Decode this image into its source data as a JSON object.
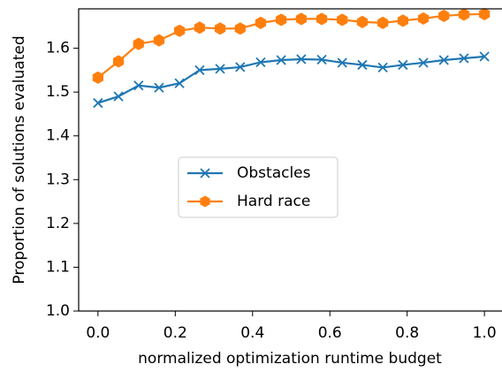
{
  "chart_data": {
    "type": "line",
    "xlabel": "normalized optimization runtime budget",
    "ylabel": "Proportion of solutions evaluated",
    "x": [
      0,
      0.053,
      0.105,
      0.158,
      0.211,
      0.263,
      0.316,
      0.368,
      0.421,
      0.474,
      0.526,
      0.579,
      0.632,
      0.684,
      0.737,
      0.789,
      0.842,
      0.895,
      0.947,
      1
    ],
    "series": [
      {
        "name": "Obstacles",
        "color": "#1f77b4",
        "marker": "x",
        "values": [
          1.475,
          1.49,
          1.515,
          1.51,
          1.52,
          1.55,
          1.553,
          1.557,
          1.568,
          1.573,
          1.575,
          1.574,
          1.567,
          1.562,
          1.556,
          1.562,
          1.567,
          1.573,
          1.577,
          1.581
        ]
      },
      {
        "name": "Hard race",
        "color": "#ff7f0e",
        "marker": "h",
        "values": [
          1.533,
          1.57,
          1.61,
          1.618,
          1.64,
          1.647,
          1.645,
          1.645,
          1.658,
          1.665,
          1.667,
          1.667,
          1.665,
          1.66,
          1.658,
          1.663,
          1.668,
          1.674,
          1.677,
          1.678
        ]
      }
    ],
    "xlim": [
      -0.05,
      1.05
    ],
    "ylim": [
      1.0,
      1.69
    ],
    "xticks": [
      {
        "value": 0,
        "label": "0.0"
      },
      0.2,
      0.4,
      0.6,
      0.8,
      {
        "value": 1,
        "label": "1.0"
      }
    ],
    "yticks": [
      {
        "value": 1,
        "label": "1.0"
      },
      1.1,
      1.2,
      1.3,
      1.4,
      1.5,
      1.6
    ],
    "legend_position": "center"
  }
}
